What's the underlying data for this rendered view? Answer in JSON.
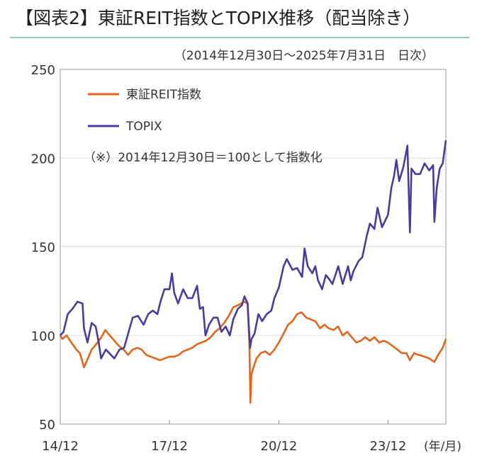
{
  "title": "【図表2】東証REIT指数とTOPIX推移（配当除き）",
  "subtitle": "（2014年12月30日〜2025年7月31日　日次）",
  "note": "（※）2014年12月30日＝100として指数化",
  "unit_label": "(年/月)",
  "colors": {
    "reit": "#e4641a",
    "topix": "#4a3b9c",
    "rule": "#8ccfb0",
    "grid": "#dddddd"
  },
  "chart_data": {
    "type": "line",
    "title": "東証REIT指数とTOPIX推移（配当除き）",
    "xlabel": "",
    "ylabel": "",
    "x_unit": "(年/月)",
    "ylim": [
      50,
      250
    ],
    "yticks": [
      50,
      100,
      150,
      200,
      250
    ],
    "xlim": [
      "2014-12-30",
      "2025-07-31"
    ],
    "xticks": [
      {
        "label": "14/12",
        "date": "2014-12-30"
      },
      {
        "label": "17/12",
        "date": "2017-12-29"
      },
      {
        "label": "20/12",
        "date": "2020-12-30"
      },
      {
        "label": "23/12",
        "date": "2023-12-29"
      }
    ],
    "grid": "y-major",
    "legend": "top-left",
    "series": [
      {
        "name": "東証REIT指数",
        "color": "#e4641a",
        "points": [
          [
            "2014-12-30",
            100
          ],
          [
            "2015-01-20",
            98
          ],
          [
            "2015-03-05",
            100
          ],
          [
            "2015-04-20",
            96
          ],
          [
            "2015-06-10",
            92
          ],
          [
            "2015-07-15",
            90
          ],
          [
            "2015-08-25",
            82
          ],
          [
            "2015-09-25",
            86
          ],
          [
            "2015-11-10",
            92
          ],
          [
            "2015-12-25",
            95
          ],
          [
            "2016-02-15",
            99
          ],
          [
            "2016-03-25",
            103
          ],
          [
            "2016-05-10",
            100
          ],
          [
            "2016-06-25",
            97
          ],
          [
            "2016-08-10",
            94
          ],
          [
            "2016-09-25",
            92
          ],
          [
            "2016-11-10",
            89
          ],
          [
            "2016-12-25",
            92
          ],
          [
            "2017-02-10",
            93
          ],
          [
            "2017-03-25",
            92
          ],
          [
            "2017-05-10",
            89
          ],
          [
            "2017-06-25",
            88
          ],
          [
            "2017-08-10",
            87
          ],
          [
            "2017-09-25",
            86
          ],
          [
            "2017-11-10",
            87
          ],
          [
            "2017-12-29",
            88
          ],
          [
            "2018-02-15",
            88
          ],
          [
            "2018-04-01",
            89
          ],
          [
            "2018-05-15",
            91
          ],
          [
            "2018-07-01",
            92
          ],
          [
            "2018-08-15",
            93
          ],
          [
            "2018-10-01",
            95
          ],
          [
            "2018-11-15",
            96
          ],
          [
            "2018-12-31",
            97
          ],
          [
            "2019-02-15",
            99
          ],
          [
            "2019-04-01",
            102
          ],
          [
            "2019-05-15",
            104
          ],
          [
            "2019-07-01",
            107
          ],
          [
            "2019-08-15",
            111
          ],
          [
            "2019-10-01",
            116
          ],
          [
            "2019-11-15",
            117
          ],
          [
            "2020-01-20",
            119
          ],
          [
            "2020-02-20",
            118
          ],
          [
            "2020-03-10",
            95
          ],
          [
            "2020-03-19",
            62
          ],
          [
            "2020-03-30",
            78
          ],
          [
            "2020-04-20",
            82
          ],
          [
            "2020-05-20",
            87
          ],
          [
            "2020-07-01",
            90
          ],
          [
            "2020-08-15",
            91
          ],
          [
            "2020-10-01",
            89
          ],
          [
            "2020-11-15",
            92
          ],
          [
            "2020-12-30",
            96
          ],
          [
            "2021-02-15",
            101
          ],
          [
            "2021-04-01",
            106
          ],
          [
            "2021-05-15",
            108
          ],
          [
            "2021-07-01",
            112
          ],
          [
            "2021-08-15",
            113
          ],
          [
            "2021-10-01",
            110
          ],
          [
            "2021-11-15",
            109
          ],
          [
            "2021-12-31",
            108
          ],
          [
            "2022-02-15",
            104
          ],
          [
            "2022-04-01",
            106
          ],
          [
            "2022-05-15",
            104
          ],
          [
            "2022-07-01",
            103
          ],
          [
            "2022-08-15",
            105
          ],
          [
            "2022-10-01",
            100
          ],
          [
            "2022-11-15",
            102
          ],
          [
            "2022-12-30",
            99
          ],
          [
            "2023-02-15",
            96
          ],
          [
            "2023-04-01",
            97
          ],
          [
            "2023-05-15",
            99
          ],
          [
            "2023-07-01",
            97
          ],
          [
            "2023-08-15",
            99
          ],
          [
            "2023-10-01",
            96
          ],
          [
            "2023-11-15",
            97
          ],
          [
            "2023-12-29",
            96
          ],
          [
            "2024-02-15",
            94
          ],
          [
            "2024-04-01",
            92
          ],
          [
            "2024-05-15",
            90
          ],
          [
            "2024-07-01",
            90
          ],
          [
            "2024-08-05",
            86
          ],
          [
            "2024-09-15",
            90
          ],
          [
            "2024-11-01",
            89
          ],
          [
            "2024-12-30",
            88
          ],
          [
            "2025-02-15",
            87
          ],
          [
            "2025-04-07",
            85
          ],
          [
            "2025-05-15",
            89
          ],
          [
            "2025-06-30",
            93
          ],
          [
            "2025-07-31",
            98
          ]
        ]
      },
      {
        "name": "TOPIX",
        "color": "#4a3b9c",
        "points": [
          [
            "2014-12-30",
            100
          ],
          [
            "2015-02-01",
            102
          ],
          [
            "2015-03-15",
            112
          ],
          [
            "2015-05-01",
            115
          ],
          [
            "2015-06-20",
            119
          ],
          [
            "2015-08-10",
            118
          ],
          [
            "2015-08-25",
            104
          ],
          [
            "2015-09-29",
            96
          ],
          [
            "2015-11-10",
            107
          ],
          [
            "2015-12-20",
            105
          ],
          [
            "2016-01-20",
            96
          ],
          [
            "2016-02-12",
            87
          ],
          [
            "2016-04-01",
            92
          ],
          [
            "2016-06-24",
            87
          ],
          [
            "2016-08-15",
            92
          ],
          [
            "2016-09-30",
            93
          ],
          [
            "2016-11-15",
            102
          ],
          [
            "2016-12-25",
            110
          ],
          [
            "2017-02-15",
            111
          ],
          [
            "2017-04-14",
            106
          ],
          [
            "2017-05-30",
            112
          ],
          [
            "2017-07-15",
            114
          ],
          [
            "2017-08-30",
            112
          ],
          [
            "2017-09-30",
            119
          ],
          [
            "2017-11-08",
            126
          ],
          [
            "2017-12-29",
            126
          ],
          [
            "2018-01-23",
            135
          ],
          [
            "2018-02-15",
            124
          ],
          [
            "2018-03-25",
            118
          ],
          [
            "2018-05-15",
            126
          ],
          [
            "2018-06-30",
            121
          ],
          [
            "2018-08-15",
            121
          ],
          [
            "2018-10-02",
            128
          ],
          [
            "2018-10-30",
            115
          ],
          [
            "2018-11-30",
            116
          ],
          [
            "2018-12-25",
            100
          ],
          [
            "2019-01-30",
            106
          ],
          [
            "2019-03-15",
            110
          ],
          [
            "2019-04-25",
            110
          ],
          [
            "2019-06-03",
            102
          ],
          [
            "2019-07-15",
            105
          ],
          [
            "2019-08-26",
            100
          ],
          [
            "2019-09-30",
            109
          ],
          [
            "2019-11-15",
            115
          ],
          [
            "2019-12-25",
            117
          ],
          [
            "2020-01-20",
            122
          ],
          [
            "2020-02-20",
            118
          ],
          [
            "2020-03-16",
            93
          ],
          [
            "2020-03-31",
            98
          ],
          [
            "2020-04-30",
            101
          ],
          [
            "2020-06-08",
            112
          ],
          [
            "2020-07-15",
            108
          ],
          [
            "2020-08-30",
            112
          ],
          [
            "2020-10-15",
            114
          ],
          [
            "2020-11-15",
            121
          ],
          [
            "2020-12-30",
            127
          ],
          [
            "2021-02-15",
            139
          ],
          [
            "2021-03-19",
            143
          ],
          [
            "2021-05-15",
            137
          ],
          [
            "2021-07-01",
            138
          ],
          [
            "2021-08-20",
            133
          ],
          [
            "2021-09-14",
            149
          ],
          [
            "2021-10-15",
            139
          ],
          [
            "2021-11-30",
            135
          ],
          [
            "2021-12-30",
            139
          ],
          [
            "2022-01-27",
            131
          ],
          [
            "2022-03-08",
            126
          ],
          [
            "2022-04-15",
            134
          ],
          [
            "2022-05-15",
            132
          ],
          [
            "2022-06-20",
            129
          ],
          [
            "2022-08-17",
            139
          ],
          [
            "2022-09-30",
            129
          ],
          [
            "2022-11-24",
            139
          ],
          [
            "2022-12-20",
            131
          ],
          [
            "2023-01-15",
            136
          ],
          [
            "2023-03-10",
            142
          ],
          [
            "2023-04-15",
            144
          ],
          [
            "2023-05-30",
            156
          ],
          [
            "2023-06-30",
            163
          ],
          [
            "2023-08-15",
            160
          ],
          [
            "2023-09-15",
            172
          ],
          [
            "2023-10-30",
            161
          ],
          [
            "2023-12-29",
            168
          ],
          [
            "2024-01-31",
            183
          ],
          [
            "2024-02-28",
            190
          ],
          [
            "2024-03-22",
            199
          ],
          [
            "2024-04-19",
            187
          ],
          [
            "2024-05-31",
            195
          ],
          [
            "2024-07-11",
            207
          ],
          [
            "2024-08-05",
            158
          ],
          [
            "2024-08-20",
            194
          ],
          [
            "2024-09-30",
            191
          ],
          [
            "2024-11-15",
            191
          ],
          [
            "2024-12-30",
            197
          ],
          [
            "2025-02-15",
            193
          ],
          [
            "2025-03-26",
            196
          ],
          [
            "2025-04-07",
            164
          ],
          [
            "2025-04-30",
            183
          ],
          [
            "2025-05-30",
            194
          ],
          [
            "2025-06-30",
            197
          ],
          [
            "2025-07-31",
            210
          ]
        ]
      }
    ]
  }
}
